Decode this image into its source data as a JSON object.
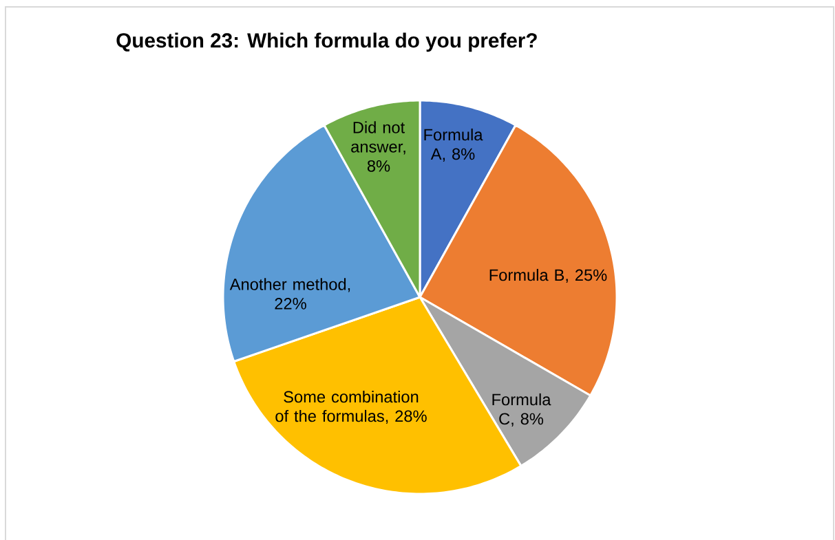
{
  "chart_data": {
    "type": "pie",
    "title": "Question 23: Which formula do you prefer?",
    "categories": [
      "Formula A, 8%",
      "Formula B, 25%",
      "Formula C, 8%",
      "Some combination of the formulas, 28%",
      "Another method, 22%",
      "Did not answer, 8%"
    ],
    "values": [
      8,
      25,
      8,
      28,
      22,
      8
    ],
    "colors": [
      "#4472c4",
      "#ed7d31",
      "#a5a5a5",
      "#ffc000",
      "#5b9bd5",
      "#70ad47"
    ]
  }
}
